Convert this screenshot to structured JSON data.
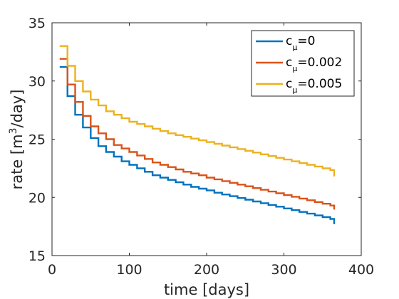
{
  "chart_data": {
    "type": "line",
    "title": "",
    "xlabel": "time [days]",
    "ylabel_parts": {
      "before": "rate [m",
      "sup": "3",
      "after": "/day]"
    },
    "xlim": [
      0,
      400
    ],
    "ylim": [
      15,
      35
    ],
    "xticks": [
      0,
      100,
      200,
      300,
      400
    ],
    "yticks": [
      15,
      20,
      25,
      30,
      35
    ],
    "grid": false,
    "legend_position": "top-right",
    "step": true,
    "x": [
      10,
      20,
      30,
      40,
      50,
      60,
      70,
      80,
      90,
      100,
      110,
      120,
      130,
      140,
      150,
      160,
      170,
      180,
      190,
      200,
      210,
      220,
      230,
      240,
      250,
      260,
      270,
      280,
      290,
      300,
      310,
      320,
      330,
      340,
      350,
      360,
      365
    ],
    "series": [
      {
        "name": "c_μ=0",
        "legend": {
          "base": "c",
          "sub": "μ",
          "rest": "=0"
        },
        "color": "#0072BD",
        "values": [
          31.2,
          28.7,
          27.1,
          26.0,
          25.1,
          24.4,
          23.9,
          23.5,
          23.1,
          22.8,
          22.5,
          22.2,
          21.9,
          21.7,
          21.5,
          21.3,
          21.1,
          20.9,
          20.75,
          20.6,
          20.4,
          20.25,
          20.1,
          19.95,
          19.8,
          19.65,
          19.5,
          19.35,
          19.2,
          19.05,
          18.9,
          18.75,
          18.6,
          18.45,
          18.3,
          18.15,
          17.7
        ]
      },
      {
        "name": "c_μ=0.002",
        "legend": {
          "base": "c",
          "sub": "μ",
          "rest": "=0.002"
        },
        "color": "#D95319",
        "values": [
          31.9,
          29.7,
          28.2,
          27.0,
          26.1,
          25.5,
          25.0,
          24.5,
          24.2,
          23.9,
          23.6,
          23.3,
          23.0,
          22.8,
          22.6,
          22.4,
          22.2,
          22.05,
          21.9,
          21.7,
          21.55,
          21.4,
          21.25,
          21.1,
          20.95,
          20.8,
          20.65,
          20.5,
          20.35,
          20.2,
          20.05,
          19.9,
          19.75,
          19.6,
          19.45,
          19.3,
          18.95
        ]
      },
      {
        "name": "c_μ=0.005",
        "legend": {
          "base": "c",
          "sub": "μ",
          "rest": "=0.005"
        },
        "color": "#EDB120",
        "values": [
          33.0,
          31.3,
          30.0,
          29.1,
          28.4,
          27.9,
          27.4,
          27.1,
          26.8,
          26.5,
          26.3,
          26.1,
          25.9,
          25.7,
          25.5,
          25.35,
          25.2,
          25.05,
          24.9,
          24.75,
          24.6,
          24.45,
          24.3,
          24.15,
          24.0,
          23.85,
          23.7,
          23.55,
          23.4,
          23.25,
          23.1,
          22.95,
          22.8,
          22.65,
          22.5,
          22.35,
          21.8
        ]
      }
    ]
  }
}
